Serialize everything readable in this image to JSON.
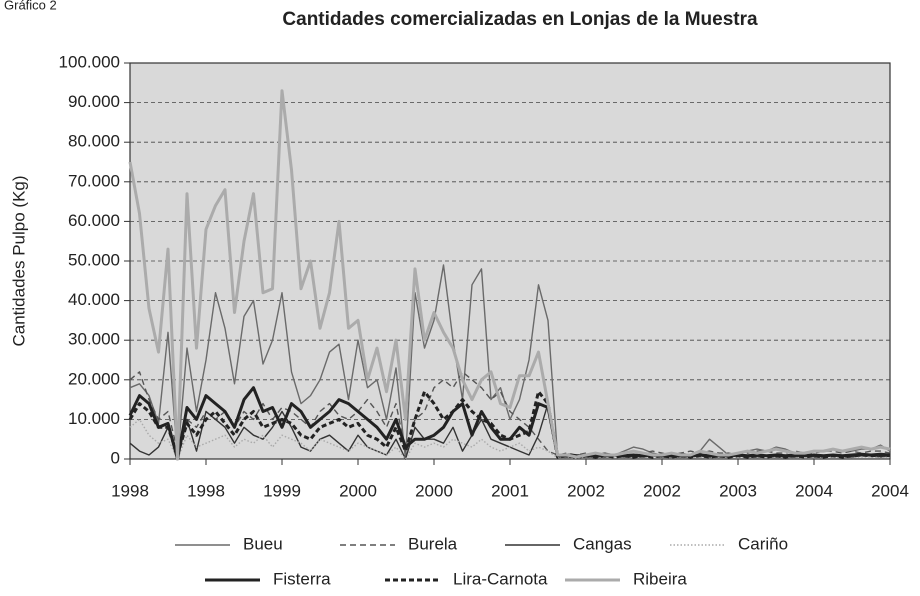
{
  "chart_data": {
    "type": "line",
    "caption": "Gráfico 2",
    "title": "Cantidades comercializadas en Lonjas de la Muestra",
    "y_label": "Cantidades Pulpo (Kg)",
    "categories": [
      "1998",
      null,
      null,
      null,
      null,
      null,
      null,
      null,
      "1998",
      null,
      null,
      null,
      null,
      null,
      null,
      null,
      "1999",
      null,
      null,
      null,
      null,
      null,
      null,
      null,
      "2000",
      null,
      null,
      null,
      null,
      null,
      null,
      null,
      "2000",
      null,
      null,
      null,
      null,
      null,
      null,
      null,
      "2001",
      null,
      null,
      null,
      null,
      null,
      null,
      null,
      "2002",
      null,
      null,
      null,
      null,
      null,
      null,
      null,
      "2002",
      null,
      null,
      null,
      null,
      null,
      null,
      null,
      "2003",
      null,
      null,
      null,
      null,
      null,
      null,
      null,
      "2004",
      null,
      null,
      null,
      null,
      null,
      null,
      null,
      "2004"
    ],
    "ylim": [
      0,
      100000
    ],
    "yticks": [
      0,
      {
        "value": 10000,
        "label": "10.000"
      },
      {
        "value": 20000,
        "label": "20.000"
      },
      {
        "value": 30000,
        "label": "30.000"
      },
      {
        "value": 40000,
        "label": "40.000"
      },
      {
        "value": 50000,
        "label": "50.000"
      },
      {
        "value": 60000,
        "label": "60.000"
      },
      {
        "value": 70000,
        "label": "70.000"
      },
      {
        "value": 80000,
        "label": "80.000"
      },
      {
        "value": 90000,
        "label": "90.000"
      },
      {
        "value": 100000,
        "label": "100.000"
      }
    ],
    "grid": true,
    "legend": "bottom",
    "series": [
      {
        "name": "Bueu",
        "color": "#6a6a6a",
        "style": "solid",
        "weight": "thin",
        "values": [
          18000,
          19000,
          16000,
          9000,
          32000,
          0,
          28000,
          12000,
          25000,
          42000,
          33000,
          19000,
          36000,
          40000,
          24000,
          30000,
          42000,
          22000,
          14000,
          16000,
          20000,
          27000,
          29000,
          15000,
          30000,
          18000,
          20000,
          10000,
          23000,
          0,
          42000,
          28000,
          35000,
          49000,
          30000,
          15000,
          44000,
          48000,
          15000,
          18000,
          10000,
          15000,
          25000,
          44000,
          35000,
          1000,
          500,
          1000,
          500,
          1000,
          1500,
          1000,
          2000,
          3000,
          2500,
          1500,
          1000,
          1000,
          1500,
          1000,
          2000,
          5000,
          3000,
          1000,
          1500,
          2000,
          2500,
          2000,
          3000,
          2500,
          1500,
          1500,
          2000,
          2000,
          2500,
          2000,
          2000,
          2500,
          2500,
          3500,
          2000
        ]
      },
      {
        "name": "Burela",
        "color": "#555555",
        "style": "dashed",
        "weight": "thin",
        "values": [
          20000,
          22000,
          15000,
          10000,
          12000,
          2000,
          10000,
          8000,
          12000,
          10000,
          12000,
          8000,
          12000,
          10000,
          14000,
          10000,
          13000,
          12000,
          10000,
          8000,
          12000,
          14000,
          11000,
          10000,
          12000,
          15000,
          12000,
          8000,
          14000,
          2000,
          10000,
          12000,
          18000,
          20000,
          18000,
          22000,
          20000,
          18000,
          15000,
          17000,
          12000,
          10000,
          8000,
          5000,
          2000,
          1000,
          1500,
          1000,
          1500,
          1000,
          1500,
          1000,
          1500,
          2000,
          1500,
          2000,
          1500,
          1000,
          1500,
          2000,
          1500,
          2000,
          1500,
          1500,
          1000,
          1500,
          2000,
          2000,
          1500,
          1500,
          2000,
          1500,
          1500,
          2000,
          2000,
          1500,
          2000,
          1500,
          2000,
          2000,
          1500
        ]
      },
      {
        "name": "Cangas",
        "color": "#333333",
        "style": "solid",
        "weight": "thin",
        "values": [
          4000,
          2000,
          1000,
          3000,
          8000,
          0,
          10000,
          2000,
          12000,
          10000,
          8000,
          4000,
          8000,
          6000,
          5000,
          8000,
          12000,
          8000,
          3000,
          2000,
          5000,
          6000,
          4000,
          2000,
          6000,
          3000,
          2000,
          1000,
          5000,
          0,
          8000,
          5000,
          5000,
          4000,
          8000,
          2000,
          6000,
          10000,
          5000,
          4000,
          3000,
          2000,
          1000,
          6000,
          14000,
          500,
          500,
          300,
          500,
          500,
          500,
          800,
          500,
          500,
          500,
          800,
          500,
          500,
          500,
          500,
          800,
          500,
          500,
          500,
          800,
          500,
          500,
          800,
          500,
          500,
          500,
          800,
          500,
          500,
          800,
          500,
          500,
          800,
          800,
          500,
          800
        ]
      },
      {
        "name": "Cariño",
        "color": "#aaaaaa",
        "style": "dotted",
        "weight": "thin",
        "values": [
          8000,
          10000,
          6000,
          4000,
          5000,
          0,
          6000,
          3000,
          4000,
          5000,
          6000,
          3000,
          5000,
          4000,
          6000,
          3000,
          6000,
          5000,
          4000,
          2000,
          5000,
          4000,
          3000,
          2000,
          4000,
          3000,
          2000,
          1000,
          3000,
          0,
          4000,
          3000,
          4000,
          3000,
          5000,
          4000,
          3000,
          5000,
          3000,
          2000,
          3000,
          4000,
          2000,
          3000,
          2000,
          300,
          300,
          200,
          300,
          300,
          300,
          500,
          300,
          300,
          300,
          500,
          300,
          300,
          300,
          300,
          500,
          300,
          300,
          300,
          500,
          300,
          300,
          500,
          300,
          300,
          300,
          500,
          300,
          300,
          500,
          300,
          300,
          500,
          500,
          300,
          500
        ]
      },
      {
        "name": "Fisterra",
        "color": "#222222",
        "style": "solid",
        "weight": "thick",
        "values": [
          11000,
          16000,
          14000,
          8000,
          9000,
          0,
          13000,
          10000,
          16000,
          14000,
          12000,
          8000,
          15000,
          18000,
          12000,
          13000,
          8000,
          14000,
          12000,
          8000,
          10000,
          12000,
          15000,
          14000,
          12000,
          10000,
          8000,
          5000,
          10000,
          3000,
          5000,
          5000,
          6000,
          8000,
          12000,
          14000,
          6000,
          12000,
          8000,
          5000,
          5000,
          8000,
          6000,
          14000,
          13000,
          1000,
          1000,
          800,
          800,
          1000,
          800,
          1000,
          800,
          1000,
          800,
          1000,
          800,
          800,
          1000,
          800,
          1000,
          800,
          1000,
          800,
          1000,
          800,
          1000,
          800,
          1000,
          800,
          1000,
          800,
          1000,
          800,
          1000,
          800,
          1000,
          1200,
          1000,
          1200,
          1000
        ]
      },
      {
        "name": "Lira-Carnota",
        "color": "#222222",
        "style": "dashed",
        "weight": "thick",
        "values": [
          10000,
          14000,
          12000,
          8000,
          8000,
          1000,
          9000,
          6000,
          10000,
          12000,
          9000,
          6000,
          10000,
          12000,
          8000,
          9000,
          10000,
          9000,
          6000,
          5000,
          8000,
          9000,
          10000,
          8000,
          9000,
          6000,
          5000,
          3000,
          8000,
          2000,
          10000,
          17000,
          14000,
          10000,
          12000,
          15000,
          12000,
          10000,
          9000,
          6000,
          5000,
          6000,
          7000,
          17000,
          14000,
          500,
          800,
          500,
          800,
          500,
          800,
          500,
          800,
          500,
          800,
          500,
          800,
          500,
          800,
          500,
          800,
          500,
          800,
          500,
          800,
          500,
          800,
          500,
          800,
          500,
          800,
          500,
          800,
          500,
          800,
          500,
          800,
          1000,
          800,
          1000,
          800
        ]
      },
      {
        "name": "Ribeira",
        "color": "#ababab",
        "style": "solid",
        "weight": "thick",
        "values": [
          75000,
          62000,
          38000,
          27000,
          53000,
          0,
          67000,
          28000,
          58000,
          64000,
          68000,
          37000,
          55000,
          67000,
          42000,
          43000,
          93000,
          73000,
          43000,
          50000,
          33000,
          42000,
          60000,
          33000,
          35000,
          20000,
          28000,
          17000,
          30000,
          10000,
          48000,
          30000,
          37000,
          32000,
          28000,
          20000,
          15000,
          20000,
          22000,
          14000,
          13000,
          21000,
          21000,
          27000,
          14000,
          1000,
          1000,
          500,
          1000,
          1500,
          1000,
          1000,
          1500,
          2000,
          1500,
          1000,
          1000,
          1500,
          1000,
          1000,
          2000,
          1500,
          1000,
          1000,
          1500,
          2000,
          1500,
          2000,
          2500,
          2000,
          1500,
          1500,
          2000,
          2000,
          2500,
          2000,
          2500,
          3000,
          2500,
          3000,
          2500
        ]
      }
    ]
  }
}
